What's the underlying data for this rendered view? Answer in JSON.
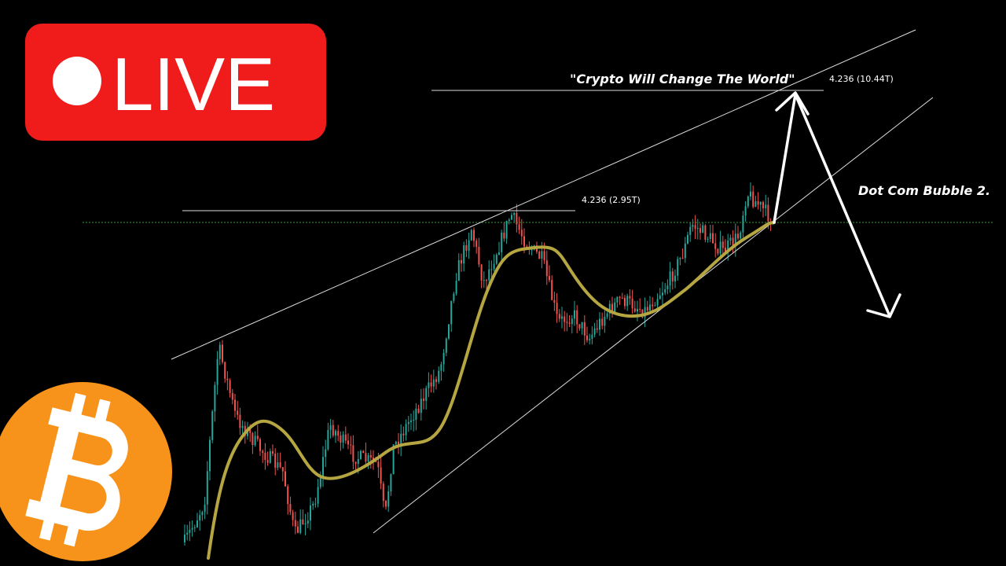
{
  "badge": {
    "label": "LIVE"
  },
  "annotations": {
    "top_quote": "\"Crypto Will Change The World\"",
    "top_level": "4.236 (10.44T)",
    "mid_level": "4.236 (2.95T)",
    "side_note": "Dot Com Bubble 2."
  }
}
